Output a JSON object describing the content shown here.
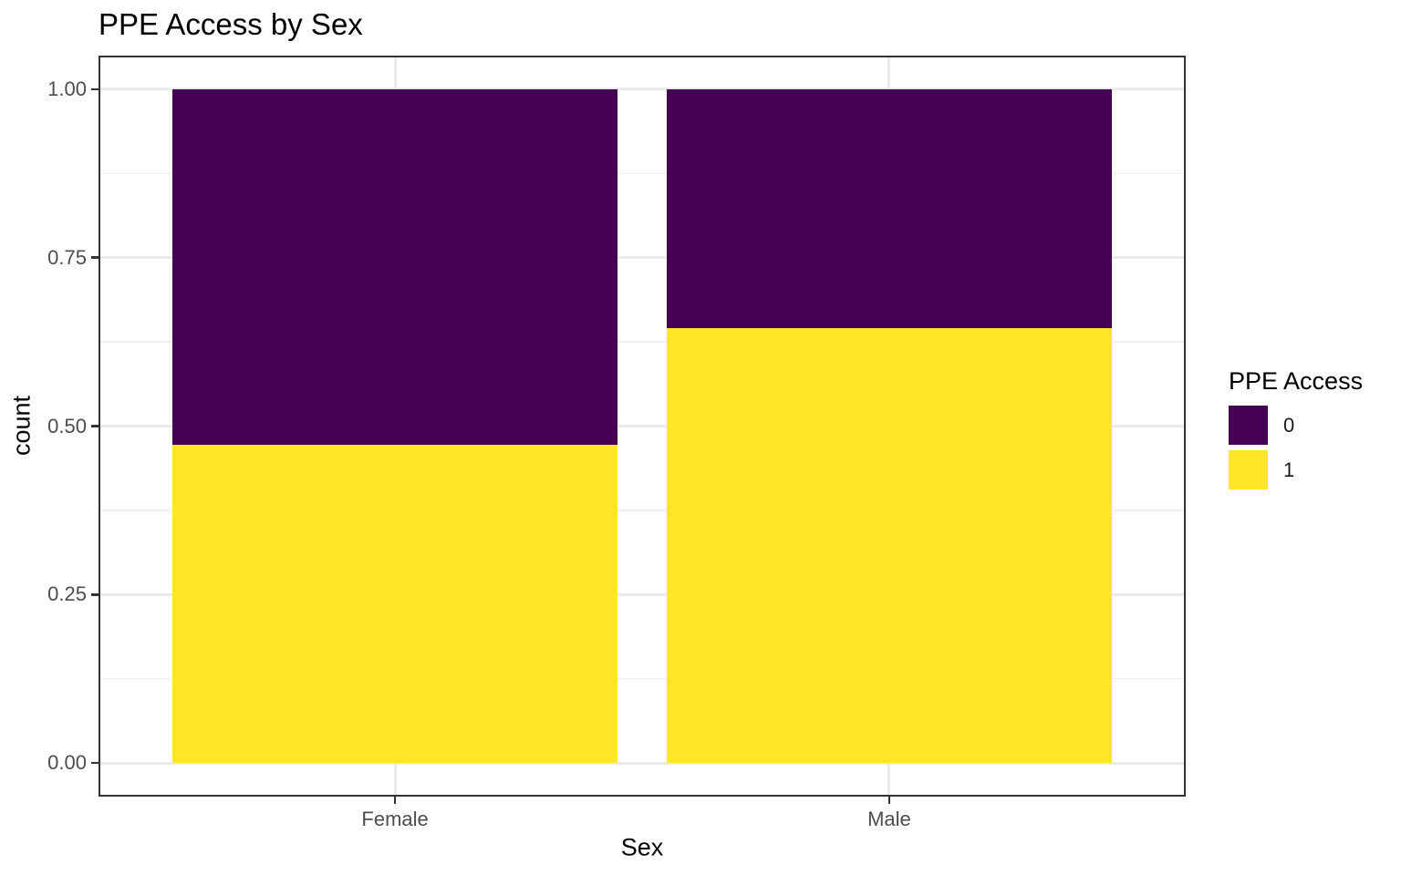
{
  "chart_data": {
    "type": "bar",
    "stacked": true,
    "normalized": true,
    "title": "PPE Access by Sex",
    "xlabel": "Sex",
    "ylabel": "count",
    "categories": [
      "Female",
      "Male"
    ],
    "series": [
      {
        "name": "0",
        "color": "#440154",
        "values": [
          0.528,
          0.355
        ]
      },
      {
        "name": "1",
        "color": "#FDE725",
        "values": [
          0.472,
          0.645
        ]
      }
    ],
    "ylim": [
      0,
      1
    ],
    "yticks": [
      0,
      0.25,
      0.5,
      0.75,
      1
    ],
    "ytick_labels": [
      "0.00",
      "0.25",
      "0.50",
      "0.75",
      "1.00"
    ],
    "yticks_minor": [
      0.125,
      0.375,
      0.625,
      0.875
    ],
    "grid": true,
    "legend": {
      "title": "PPE Access",
      "position": "right",
      "entries": [
        {
          "label": "0",
          "color": "#440154"
        },
        {
          "label": "1",
          "color": "#FDE725"
        }
      ]
    },
    "colors": {
      "grid_major": "#EBEBEB",
      "grid_minor": "#F0F0F0",
      "panel_border": "#333333",
      "tick_mark": "#333333",
      "axis_text": "#4D4D4D",
      "title_text": "#000000"
    }
  }
}
